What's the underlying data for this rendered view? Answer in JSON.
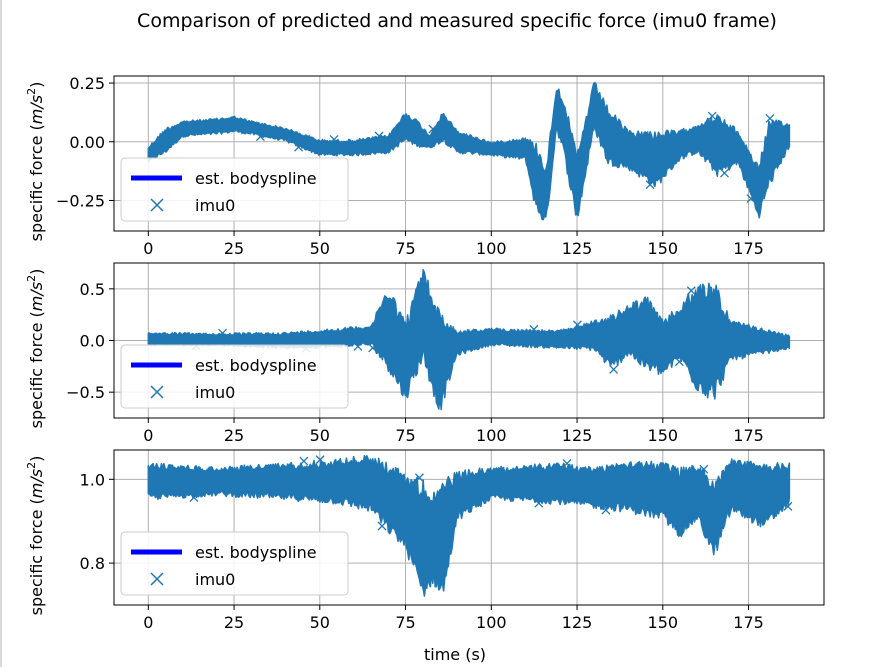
{
  "figure": {
    "title": "Comparison of predicted and measured specific force (imu0 frame)"
  },
  "colors": {
    "series_imu": "#1f77b4",
    "series_spline": "#0000ff",
    "grid": "#b0b0b0"
  },
  "chart_data": [
    {
      "type": "scatter",
      "panel": "x-axis",
      "ylabel": "specific force ($m/s^2$)",
      "xlabel": "",
      "xlim": [
        -10,
        197
      ],
      "ylim": [
        -0.38,
        0.28
      ],
      "xticks": [
        0,
        25,
        50,
        75,
        100,
        125,
        150,
        175
      ],
      "xtick_labels": [
        "0",
        "25",
        "50",
        "75",
        "100",
        "125",
        "150",
        "175"
      ],
      "yticks": [
        0.25,
        0.0,
        -0.25
      ],
      "ytick_labels": [
        "0.25",
        "0.00",
        "−0.25"
      ],
      "grid": true,
      "legend": {
        "placement": "lower-left",
        "entries": [
          "est. bodyspline",
          "imu0"
        ]
      },
      "series": [
        {
          "name": "est. bodyspline",
          "style": "line",
          "x": [],
          "values": []
        },
        {
          "name": "imu0",
          "style": "x-marker",
          "envelope": [
            {
              "t": 0,
              "lo": -0.09,
              "hi": -0.02
            },
            {
              "t": 5,
              "lo": -0.05,
              "hi": 0.06
            },
            {
              "t": 10,
              "lo": 0.02,
              "hi": 0.09
            },
            {
              "t": 20,
              "lo": 0.03,
              "hi": 0.1
            },
            {
              "t": 25,
              "lo": 0.04,
              "hi": 0.11
            },
            {
              "t": 30,
              "lo": 0.03,
              "hi": 0.09
            },
            {
              "t": 40,
              "lo": 0.0,
              "hi": 0.06
            },
            {
              "t": 50,
              "lo": -0.06,
              "hi": 0.01
            },
            {
              "t": 60,
              "lo": -0.06,
              "hi": 0.01
            },
            {
              "t": 70,
              "lo": -0.05,
              "hi": 0.03
            },
            {
              "t": 75,
              "lo": 0.0,
              "hi": 0.13
            },
            {
              "t": 78,
              "lo": -0.02,
              "hi": 0.1
            },
            {
              "t": 82,
              "lo": -0.03,
              "hi": 0.03
            },
            {
              "t": 86,
              "lo": 0.0,
              "hi": 0.13
            },
            {
              "t": 90,
              "lo": -0.05,
              "hi": 0.05
            },
            {
              "t": 100,
              "lo": -0.06,
              "hi": 0.0
            },
            {
              "t": 110,
              "lo": -0.08,
              "hi": 0.02
            },
            {
              "t": 113,
              "lo": -0.3,
              "hi": 0.0
            },
            {
              "t": 116,
              "lo": -0.36,
              "hi": -0.1
            },
            {
              "t": 119,
              "lo": 0.05,
              "hi": 0.25
            },
            {
              "t": 121,
              "lo": -0.05,
              "hi": 0.2
            },
            {
              "t": 125,
              "lo": -0.35,
              "hi": -0.05
            },
            {
              "t": 130,
              "lo": 0.05,
              "hi": 0.26
            },
            {
              "t": 134,
              "lo": -0.1,
              "hi": 0.15
            },
            {
              "t": 140,
              "lo": -0.12,
              "hi": 0.05
            },
            {
              "t": 148,
              "lo": -0.2,
              "hi": 0.05
            },
            {
              "t": 155,
              "lo": -0.08,
              "hi": 0.05
            },
            {
              "t": 160,
              "lo": -0.05,
              "hi": 0.08
            },
            {
              "t": 166,
              "lo": -0.15,
              "hi": 0.12
            },
            {
              "t": 172,
              "lo": -0.1,
              "hi": 0.05
            },
            {
              "t": 178,
              "lo": -0.33,
              "hi": -0.1
            },
            {
              "t": 181,
              "lo": -0.2,
              "hi": 0.1
            },
            {
              "t": 187,
              "lo": -0.02,
              "hi": 0.08
            }
          ]
        }
      ]
    },
    {
      "type": "scatter",
      "panel": "y-axis",
      "ylabel": "specific force ($m/s^2$)",
      "xlabel": "",
      "xlim": [
        -10,
        197
      ],
      "ylim": [
        -0.75,
        0.75
      ],
      "xticks": [
        0,
        25,
        50,
        75,
        100,
        125,
        150,
        175
      ],
      "xtick_labels": [
        "0",
        "25",
        "50",
        "75",
        "100",
        "125",
        "150",
        "175"
      ],
      "yticks": [
        0.5,
        0.0,
        -0.5
      ],
      "ytick_labels": [
        "0.5",
        "0.0",
        "−0.5"
      ],
      "grid": true,
      "legend": {
        "placement": "lower-left",
        "entries": [
          "est. bodyspline",
          "imu0"
        ]
      },
      "series": [
        {
          "name": "est. bodyspline",
          "style": "line",
          "x": [],
          "values": []
        },
        {
          "name": "imu0",
          "style": "x-marker",
          "envelope": [
            {
              "t": 0,
              "lo": -0.05,
              "hi": 0.08
            },
            {
              "t": 20,
              "lo": -0.05,
              "hi": 0.07
            },
            {
              "t": 40,
              "lo": -0.08,
              "hi": 0.08
            },
            {
              "t": 55,
              "lo": -0.07,
              "hi": 0.12
            },
            {
              "t": 65,
              "lo": -0.05,
              "hi": 0.15
            },
            {
              "t": 70,
              "lo": -0.3,
              "hi": 0.55
            },
            {
              "t": 75,
              "lo": -0.6,
              "hi": 0.2
            },
            {
              "t": 80,
              "lo": -0.2,
              "hi": 0.72
            },
            {
              "t": 85,
              "lo": -0.72,
              "hi": 0.3
            },
            {
              "t": 90,
              "lo": -0.15,
              "hi": 0.1
            },
            {
              "t": 100,
              "lo": -0.05,
              "hi": 0.12
            },
            {
              "t": 120,
              "lo": -0.08,
              "hi": 0.1
            },
            {
              "t": 130,
              "lo": -0.1,
              "hi": 0.2
            },
            {
              "t": 135,
              "lo": -0.3,
              "hi": 0.25
            },
            {
              "t": 140,
              "lo": -0.15,
              "hi": 0.35
            },
            {
              "t": 145,
              "lo": -0.3,
              "hi": 0.45
            },
            {
              "t": 150,
              "lo": -0.35,
              "hi": 0.2
            },
            {
              "t": 155,
              "lo": -0.2,
              "hi": 0.35
            },
            {
              "t": 160,
              "lo": -0.5,
              "hi": 0.55
            },
            {
              "t": 165,
              "lo": -0.6,
              "hi": 0.6
            },
            {
              "t": 170,
              "lo": -0.2,
              "hi": 0.2
            },
            {
              "t": 187,
              "lo": -0.08,
              "hi": 0.05
            }
          ]
        }
      ]
    },
    {
      "type": "scatter",
      "panel": "z-axis",
      "ylabel": "specific force ($m/s^2$)",
      "xlabel": "time (s)",
      "xlim": [
        -10,
        197
      ],
      "ylim": [
        0.7,
        1.07
      ],
      "xticks": [
        0,
        25,
        50,
        75,
        100,
        125,
        150,
        175
      ],
      "xtick_labels": [
        "0",
        "25",
        "50",
        "75",
        "100",
        "125",
        "150",
        "175"
      ],
      "yticks": [
        1.0,
        0.8
      ],
      "ytick_labels": [
        "1.0",
        "0.8"
      ],
      "grid": true,
      "legend": {
        "placement": "lower-left",
        "entries": [
          "est. bodyspline",
          "imu0"
        ]
      },
      "series": [
        {
          "name": "est. bodyspline",
          "style": "line",
          "x": [],
          "values": []
        },
        {
          "name": "imu0",
          "style": "x-marker",
          "envelope": [
            {
              "t": 0,
              "lo": 0.95,
              "hi": 1.04
            },
            {
              "t": 20,
              "lo": 0.96,
              "hi": 1.03
            },
            {
              "t": 40,
              "lo": 0.95,
              "hi": 1.04
            },
            {
              "t": 55,
              "lo": 0.94,
              "hi": 1.05
            },
            {
              "t": 65,
              "lo": 0.92,
              "hi": 1.06
            },
            {
              "t": 70,
              "lo": 0.87,
              "hi": 1.04
            },
            {
              "t": 75,
              "lo": 0.83,
              "hi": 1.02
            },
            {
              "t": 80,
              "lo": 0.71,
              "hi": 1.0
            },
            {
              "t": 83,
              "lo": 0.75,
              "hi": 0.98
            },
            {
              "t": 86,
              "lo": 0.71,
              "hi": 1.0
            },
            {
              "t": 90,
              "lo": 0.9,
              "hi": 1.02
            },
            {
              "t": 100,
              "lo": 0.95,
              "hi": 1.03
            },
            {
              "t": 120,
              "lo": 0.94,
              "hi": 1.04
            },
            {
              "t": 130,
              "lo": 0.93,
              "hi": 1.03
            },
            {
              "t": 140,
              "lo": 0.92,
              "hi": 1.05
            },
            {
              "t": 150,
              "lo": 0.9,
              "hi": 1.04
            },
            {
              "t": 155,
              "lo": 0.86,
              "hi": 1.03
            },
            {
              "t": 160,
              "lo": 0.9,
              "hi": 1.04
            },
            {
              "t": 165,
              "lo": 0.81,
              "hi": 1.0
            },
            {
              "t": 170,
              "lo": 0.92,
              "hi": 1.05
            },
            {
              "t": 180,
              "lo": 0.88,
              "hi": 1.04
            },
            {
              "t": 187,
              "lo": 0.94,
              "hi": 1.04
            }
          ]
        }
      ]
    }
  ]
}
